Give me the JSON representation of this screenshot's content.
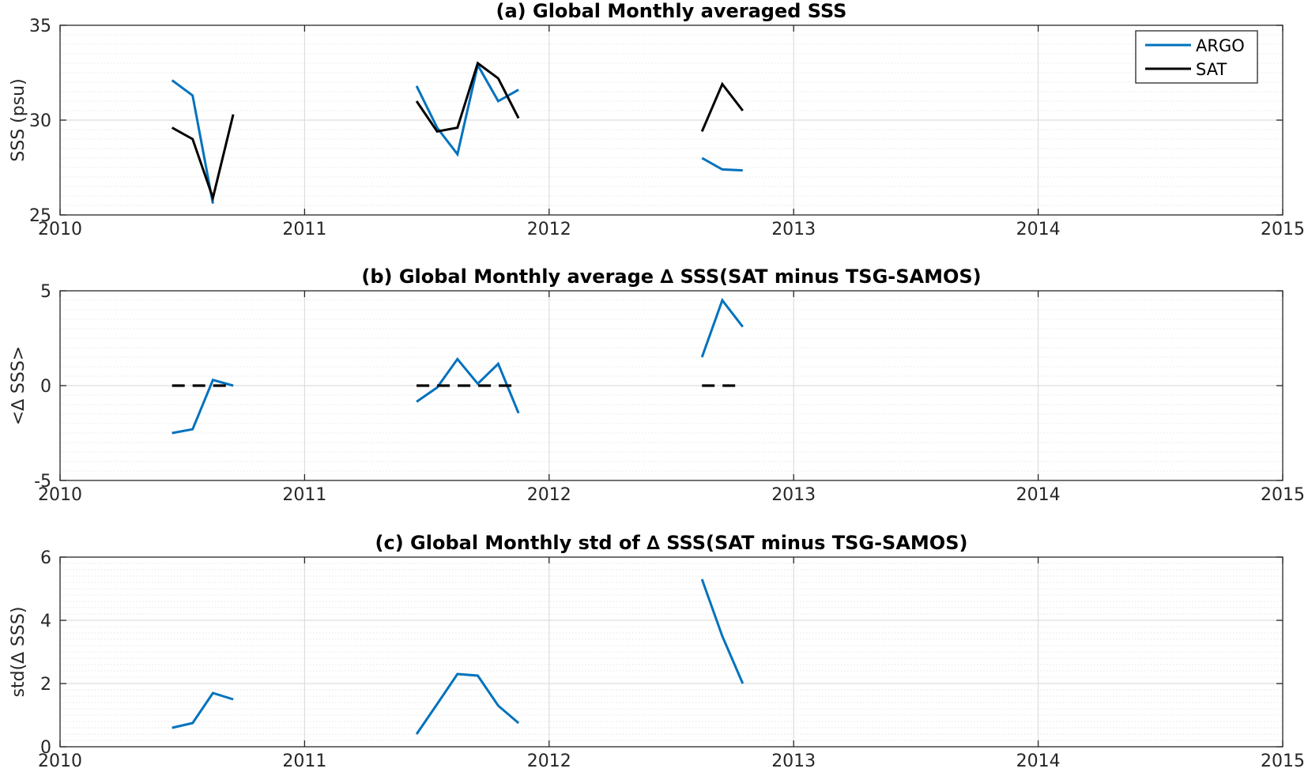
{
  "colors": {
    "argo": "#0072BD",
    "sat": "#000000",
    "grid_major": "#dddddd",
    "grid_minor": "#e6e6e6",
    "axis": "#262626"
  },
  "chart_data": [
    {
      "type": "line",
      "title": "(a) Global Monthly averaged SSS",
      "ylabel": "SSS (psu)",
      "xlim": [
        2010,
        2015
      ],
      "ylim": [
        25,
        35
      ],
      "xticks": [
        2010,
        2011,
        2012,
        2013,
        2014,
        2015
      ],
      "xtick_labels": [
        "2010",
        "2011",
        "2012",
        "2013",
        "2014",
        "2015"
      ],
      "yticks": [
        25,
        30,
        35
      ],
      "ytick_labels": [
        "25",
        "30",
        "35"
      ],
      "minor_step": 0.5,
      "grid": true,
      "legend": {
        "placement": "top-right",
        "entries": [
          "ARGO",
          "SAT"
        ]
      },
      "series": [
        {
          "name": "ARGO",
          "color": "#0072BD",
          "dash": false,
          "segments": [
            [
              [
                2010.458,
                32.1
              ],
              [
                2010.542,
                31.3
              ],
              [
                2010.625,
                25.6
              ]
            ],
            [
              [
                2011.458,
                31.8
              ],
              [
                2011.542,
                29.6
              ],
              [
                2011.625,
                28.2
              ],
              [
                2011.708,
                32.9
              ],
              [
                2011.792,
                31.0
              ],
              [
                2011.875,
                31.6
              ]
            ],
            [
              [
                2012.625,
                28.0
              ],
              [
                2012.708,
                27.4
              ],
              [
                2012.792,
                27.35
              ]
            ]
          ]
        },
        {
          "name": "SAT",
          "color": "#000000",
          "dash": false,
          "segments": [
            [
              [
                2010.458,
                29.6
              ],
              [
                2010.542,
                29.0
              ],
              [
                2010.625,
                25.9
              ],
              [
                2010.708,
                30.3
              ]
            ],
            [
              [
                2011.458,
                31.0
              ],
              [
                2011.542,
                29.4
              ],
              [
                2011.625,
                29.6
              ],
              [
                2011.708,
                33.0
              ],
              [
                2011.792,
                32.2
              ],
              [
                2011.875,
                30.1
              ]
            ],
            [
              [
                2012.625,
                29.4
              ],
              [
                2012.708,
                31.9
              ],
              [
                2012.792,
                30.5
              ]
            ]
          ]
        }
      ]
    },
    {
      "type": "line",
      "title": "(b) Global Monthly average ∆ SSS(SAT minus TSG-SAMOS)",
      "ylabel": "<∆ SSS>",
      "xlim": [
        2010,
        2015
      ],
      "ylim": [
        -5,
        5
      ],
      "xticks": [
        2010,
        2011,
        2012,
        2013,
        2014,
        2015
      ],
      "xtick_labels": [
        "2010",
        "2011",
        "2012",
        "2013",
        "2014",
        "2015"
      ],
      "yticks": [
        -5,
        0,
        5
      ],
      "ytick_labels": [
        "-5",
        "0",
        "5"
      ],
      "minor_step": 0.5,
      "grid": true,
      "series": [
        {
          "color": "#0072BD",
          "dash": false,
          "segments": [
            [
              [
                2010.458,
                -2.5
              ],
              [
                2010.542,
                -2.3
              ],
              [
                2010.625,
                0.3
              ],
              [
                2010.708,
                0.0
              ]
            ],
            [
              [
                2011.458,
                -0.85
              ],
              [
                2011.542,
                -0.1
              ],
              [
                2011.625,
                1.4
              ],
              [
                2011.708,
                0.1
              ],
              [
                2011.792,
                1.15
              ],
              [
                2011.875,
                -1.45
              ]
            ],
            [
              [
                2012.625,
                1.5
              ],
              [
                2012.708,
                4.5
              ],
              [
                2012.792,
                3.1
              ]
            ]
          ]
        },
        {
          "color": "#000000",
          "dash": true,
          "segments": [
            [
              [
                2010.458,
                0.0
              ],
              [
                2010.708,
                0.0
              ]
            ],
            [
              [
                2011.458,
                0.0
              ],
              [
                2011.875,
                0.0
              ]
            ],
            [
              [
                2012.625,
                0.0
              ],
              [
                2012.792,
                0.0
              ]
            ]
          ]
        }
      ]
    },
    {
      "type": "line",
      "title": "(c) Global Monthly std of ∆ SSS(SAT minus TSG-SAMOS)",
      "ylabel": "std(∆ SSS)",
      "xlim": [
        2010,
        2015
      ],
      "ylim": [
        0,
        6
      ],
      "xticks": [
        2010,
        2011,
        2012,
        2013,
        2014,
        2015
      ],
      "xtick_labels": [
        "2010",
        "2011",
        "2012",
        "2013",
        "2014",
        "2015"
      ],
      "yticks": [
        0,
        2,
        4,
        6
      ],
      "ytick_labels": [
        "0",
        "2",
        "4",
        "6"
      ],
      "minor_step": 0.2,
      "grid": true,
      "series": [
        {
          "color": "#0072BD",
          "dash": false,
          "segments": [
            [
              [
                2010.458,
                0.6
              ],
              [
                2010.542,
                0.75
              ],
              [
                2010.625,
                1.7
              ],
              [
                2010.708,
                1.5
              ]
            ],
            [
              [
                2011.458,
                0.4
              ],
              [
                2011.542,
                1.35
              ],
              [
                2011.625,
                2.3
              ],
              [
                2011.708,
                2.25
              ],
              [
                2011.792,
                1.3
              ],
              [
                2011.875,
                0.75
              ]
            ],
            [
              [
                2012.625,
                5.3
              ],
              [
                2012.708,
                3.5
              ],
              [
                2012.792,
                2.0
              ]
            ]
          ]
        }
      ]
    }
  ]
}
